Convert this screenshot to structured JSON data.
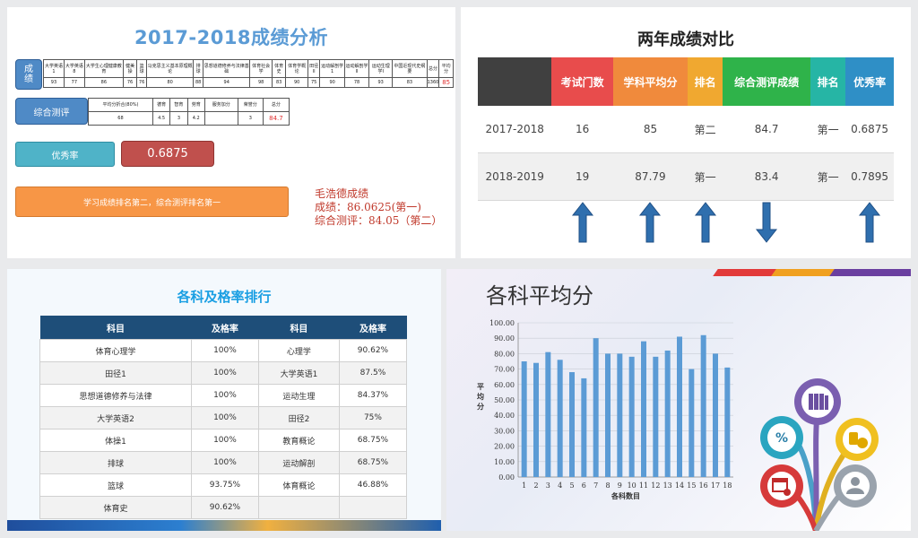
{
  "panel1": {
    "title": "2017-2018成绩分析",
    "score_tag": "成\n绩",
    "score_headers": [
      "大学英语1",
      "大学英语8",
      "大学生心理健康教育",
      "健美操",
      "篮球",
      "马克思主义基本原理概论",
      "排球",
      "思想道德修养与法律基础",
      "体育社会学",
      "体育史",
      "体育学概论",
      "田径II",
      "运动解剖学1",
      "运动解剖学II",
      "运动生理学I",
      "中国近现代史纲要",
      "总分",
      "平均分"
    ],
    "score_values": [
      "93",
      "77",
      "86",
      "76",
      "76",
      "80",
      "88",
      "94",
      "98",
      "83",
      "90",
      "75",
      "90",
      "78",
      "93",
      "83",
      "1360",
      "85"
    ],
    "comp_tag": "综合测评",
    "comp_headers": [
      "平均分折合(80%)",
      "德育",
      "智育",
      "劳育",
      "服务加分",
      "荣誉分",
      "总分"
    ],
    "comp_values": [
      "68",
      "4.5",
      "3",
      "4.2",
      "",
      "3",
      "84.7"
    ],
    "excellence_tag": "优秀率",
    "excellence_value": "0.6875",
    "rank_banner": "学习成绩排名第二，综合测评排名第一",
    "note_name": "毛浩德成绩",
    "note_score": "成绩：86.0625(第一)",
    "note_comp": "综合测评：84.05（第二）"
  },
  "panel2": {
    "title": "两年成绩对比",
    "headers": [
      "",
      "考试门数",
      "学科平均分",
      "排名",
      "综合测评成绩",
      "排名",
      "优秀率"
    ],
    "header_colors": [
      "#404040",
      "#e84c4c",
      "#f08a3c",
      "#f0a830",
      "#2fb34a",
      "#26b5a5",
      "#2f8fc6"
    ],
    "rows": [
      [
        "2017-2018",
        "16",
        "85",
        "第二",
        "84.7",
        "第一",
        "0.6875"
      ],
      [
        "2018-2019",
        "19",
        "87.79",
        "第一",
        "83.4",
        "第一",
        "0.7895"
      ]
    ],
    "arrows": [
      "up",
      "up",
      "up",
      "down",
      "",
      "up"
    ],
    "arrow_color": "#2f6fae"
  },
  "panel3": {
    "title": "各科及格率排行",
    "headers": [
      "科目",
      "及格率",
      "科目",
      "及格率"
    ],
    "rows": [
      [
        "体育心理学",
        "100%",
        "心理学",
        "90.62%"
      ],
      [
        "田径1",
        "100%",
        "大学英语1",
        "87.5%"
      ],
      [
        "思想道德修养与法律",
        "100%",
        "运动生理",
        "84.37%"
      ],
      [
        "大学英语2",
        "100%",
        "田径2",
        "75%"
      ],
      [
        "体操1",
        "100%",
        "教育概论",
        "68.75%"
      ],
      [
        "排球",
        "100%",
        "运动解剖",
        "68.75%"
      ],
      [
        "篮球",
        "93.75%",
        "体育概论",
        "46.88%"
      ],
      [
        "体育史",
        "90.62%",
        "",
        ""
      ]
    ]
  },
  "panel4": {
    "title": "各科平均分",
    "icons": [
      "books-icon",
      "percent-icon",
      "coins-icon",
      "calendar-icon",
      "person-icon"
    ]
  },
  "chart_data": {
    "type": "bar",
    "categories": [
      "1",
      "2",
      "3",
      "4",
      "5",
      "6",
      "7",
      "8",
      "9",
      "10",
      "11",
      "12",
      "13",
      "14",
      "15",
      "16",
      "17",
      "18"
    ],
    "values": [
      75,
      74,
      81,
      76,
      68,
      64,
      90,
      80,
      80,
      78,
      88,
      78,
      82,
      91,
      70,
      92,
      80,
      71
    ],
    "xlabel": "各科数目",
    "ylabel": "平均分",
    "ylim": [
      0,
      100
    ],
    "yticks": [
      "0.00",
      "10.00",
      "20.00",
      "30.00",
      "40.00",
      "50.00",
      "60.00",
      "70.00",
      "80.00",
      "90.00",
      "100.00"
    ],
    "bar_color": "#5b9bd5",
    "grid": true
  }
}
